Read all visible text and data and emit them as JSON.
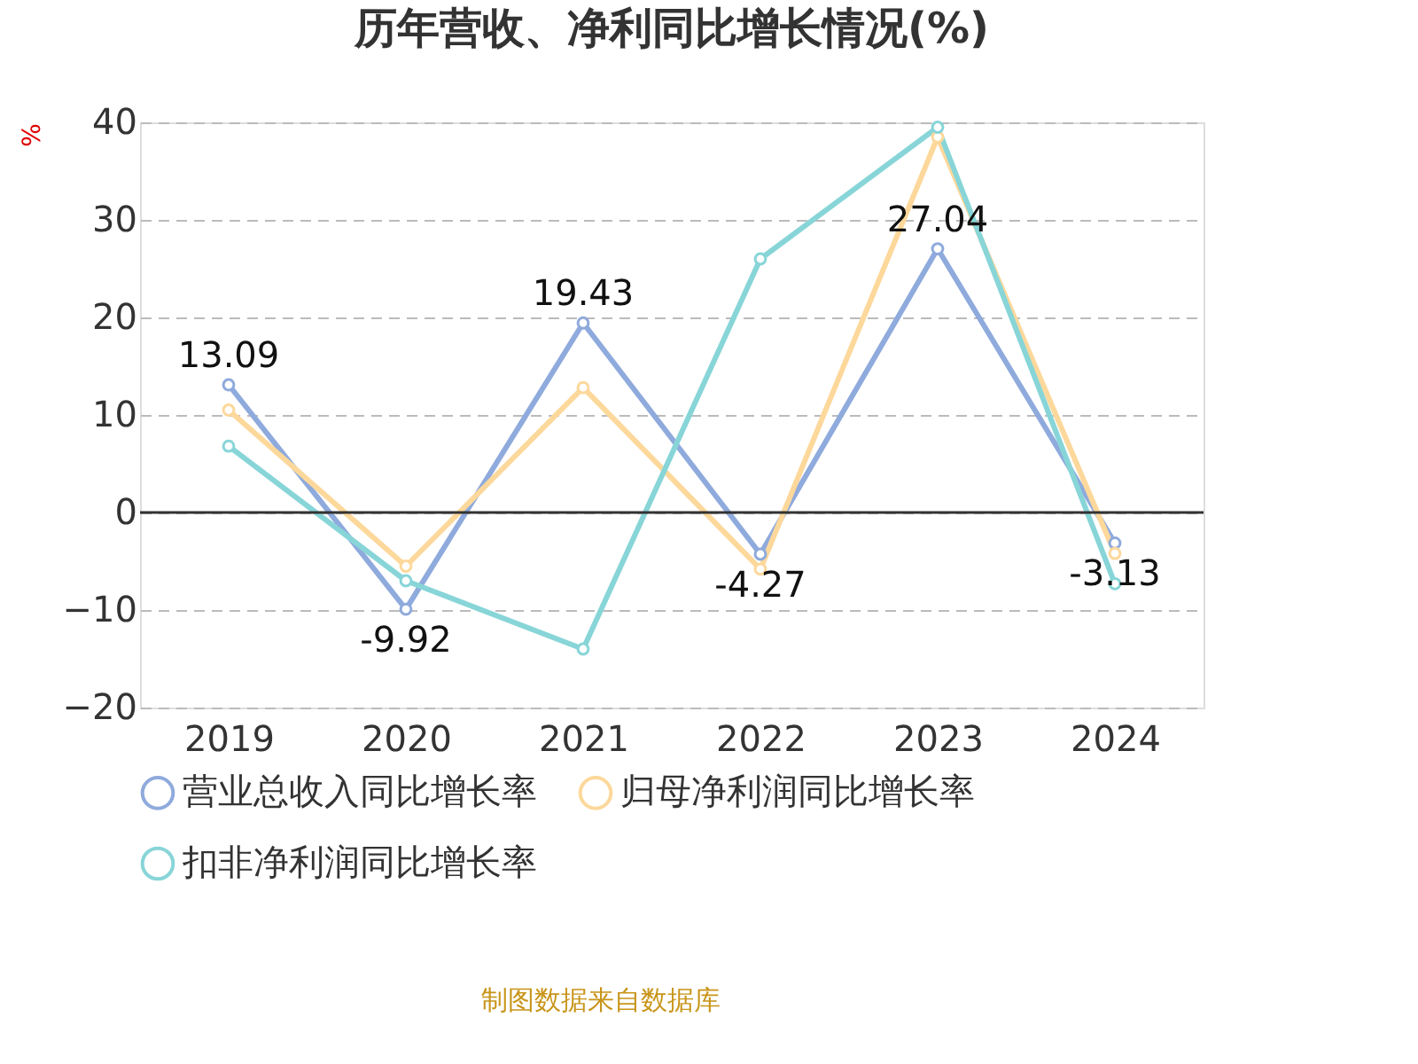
{
  "chart_data": {
    "type": "line",
    "title": "历年营收、净利同比增长情况(%)",
    "ylabel": "%",
    "categories": [
      "2019",
      "2020",
      "2021",
      "2022",
      "2023",
      "2024"
    ],
    "series": [
      {
        "name": "营业总收入同比增长率",
        "color": "#8faadc",
        "values": [
          13.09,
          -9.92,
          19.43,
          -4.27,
          27.04,
          -3.13
        ],
        "value_labels": [
          "13.09",
          "-9.92",
          "19.43",
          "-4.27",
          "27.04",
          "-3.13"
        ]
      },
      {
        "name": "归母净利润同比增长率",
        "color": "#fdd89b",
        "values": [
          10.5,
          -5.5,
          12.8,
          -5.8,
          38.5,
          -4.2
        ]
      },
      {
        "name": "扣非净利润同比增长率",
        "color": "#88d5d8",
        "values": [
          6.8,
          -7,
          -14,
          26,
          39.5,
          -7.3
        ]
      }
    ],
    "ylim": [
      -20,
      40
    ],
    "yticks": [
      -20,
      -10,
      0,
      10,
      20,
      30,
      40
    ],
    "grid": "y",
    "legend": "bottom",
    "marker": "circle",
    "line_style": "solid",
    "annotations": [
      "制图数据来自数据库"
    ]
  }
}
